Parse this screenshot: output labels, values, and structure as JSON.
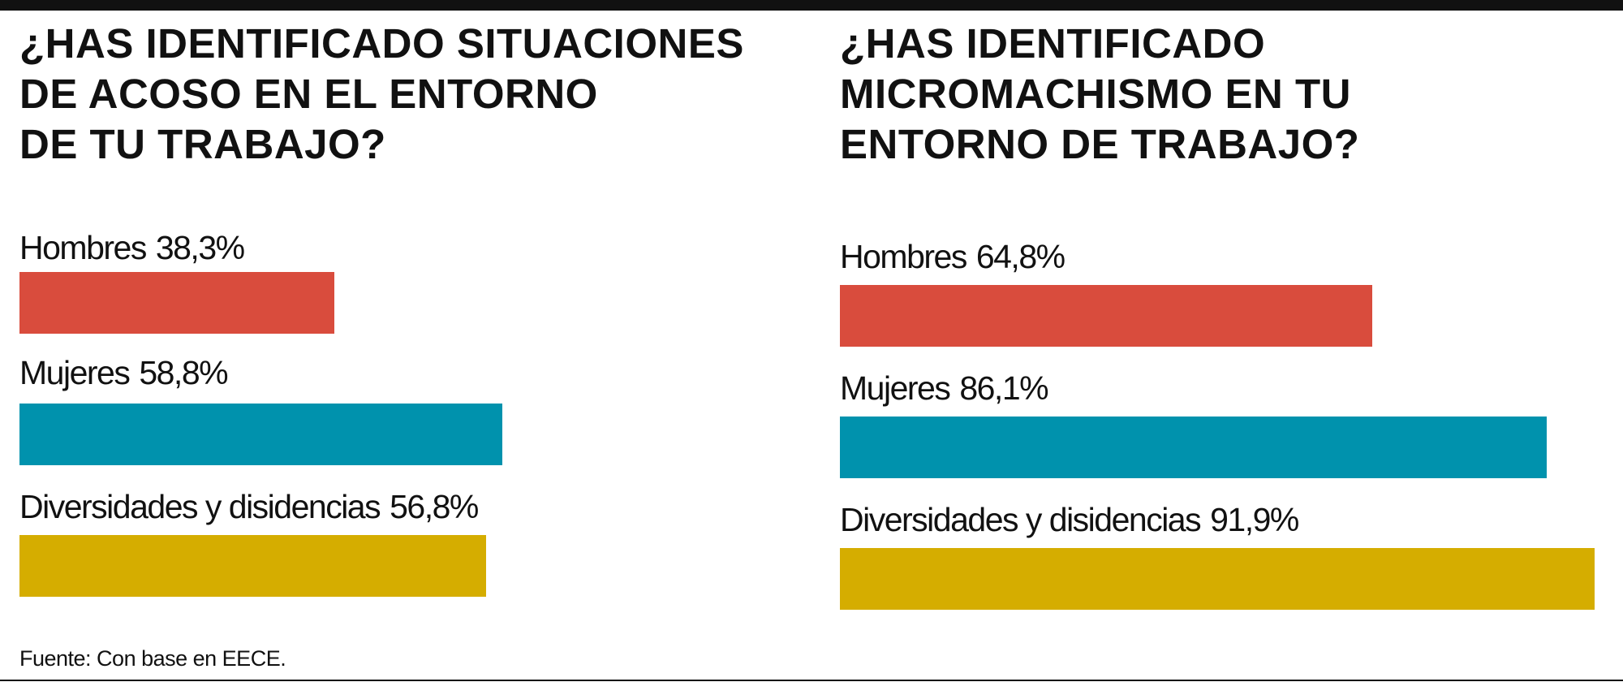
{
  "chart_data": [
    {
      "type": "bar",
      "orientation": "horizontal",
      "title_lines": [
        "¿HAS IDENTIFICADO SITUACIONES",
        "DE ACOSO EN EL ENTORNO",
        "DE TU TRABAJO?"
      ],
      "categories": [
        "Hombres",
        "Mujeres",
        "Diversidades y disidencias"
      ],
      "values": [
        38.3,
        58.8,
        56.8
      ],
      "value_labels": [
        "38,3%",
        "58,8%",
        "56,8%"
      ],
      "colors": [
        "#d94c3d",
        "#0092ad",
        "#d5ad00"
      ],
      "unit": "%",
      "xlim": [
        0,
        100
      ],
      "grid": false,
      "legend": "none"
    },
    {
      "type": "bar",
      "orientation": "horizontal",
      "title_lines": [
        "¿HAS IDENTIFICADO",
        "MICROMACHISMO EN TU",
        "ENTORNO DE  TRABAJO?"
      ],
      "categories": [
        "Hombres",
        "Mujeres",
        "Diversidades y disidencias"
      ],
      "values": [
        64.8,
        86.1,
        91.9
      ],
      "value_labels": [
        "64,8%",
        "86,1%",
        "91,9%"
      ],
      "colors": [
        "#d94c3d",
        "#0092ad",
        "#d5ad00"
      ],
      "unit": "%",
      "xlim": [
        0,
        100
      ],
      "grid": false,
      "legend": "none"
    }
  ],
  "source": "Fuente: Con base en EECE.",
  "colors": {
    "hombres": "#d94c3d",
    "mujeres": "#0092ad",
    "diversidades": "#d5ad00",
    "rule": "#111111"
  }
}
